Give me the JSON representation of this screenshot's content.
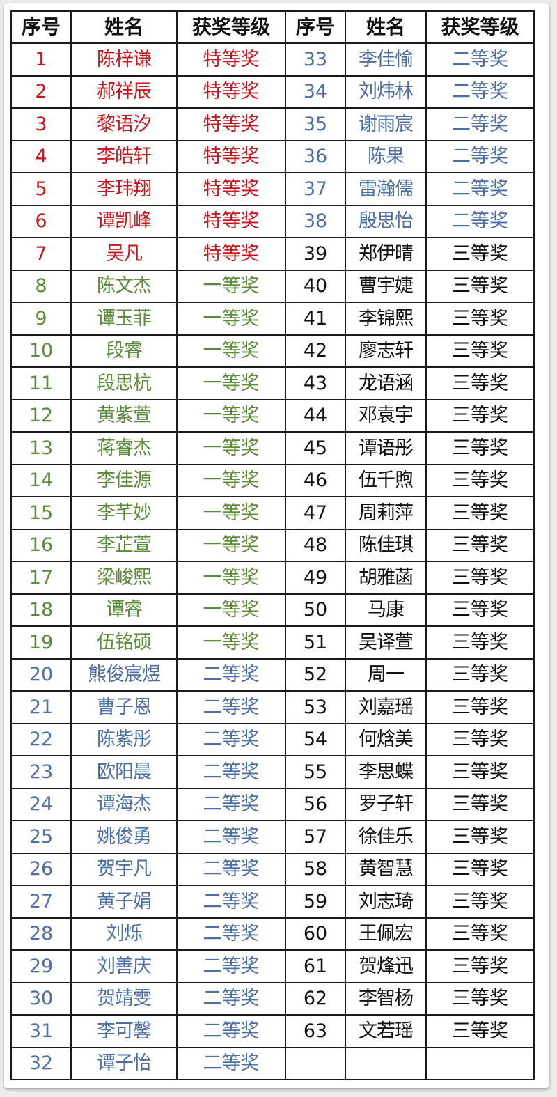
{
  "headers": [
    "序号",
    "姓名",
    "获奖等级",
    "序号",
    "姓名",
    "获奖等级"
  ],
  "colors": {
    "特等奖": "#c8161e",
    "一等奖": "#5b8c3a",
    "二等奖": "#4e6fa3",
    "三等奖": "#111111"
  },
  "left": [
    {
      "seq": "1",
      "name": "陈梓谦",
      "award": "特等奖"
    },
    {
      "seq": "2",
      "name": "郝祥辰",
      "award": "特等奖"
    },
    {
      "seq": "3",
      "name": "黎语汐",
      "award": "特等奖"
    },
    {
      "seq": "4",
      "name": "李皓轩",
      "award": "特等奖"
    },
    {
      "seq": "5",
      "name": "李玮翔",
      "award": "特等奖"
    },
    {
      "seq": "6",
      "name": "谭凯峰",
      "award": "特等奖"
    },
    {
      "seq": "7",
      "name": "吴凡",
      "award": "特等奖"
    },
    {
      "seq": "8",
      "name": "陈文杰",
      "award": "一等奖"
    },
    {
      "seq": "9",
      "name": "谭玉菲",
      "award": "一等奖"
    },
    {
      "seq": "10",
      "name": "段睿",
      "award": "一等奖"
    },
    {
      "seq": "11",
      "name": "段思杭",
      "award": "一等奖"
    },
    {
      "seq": "12",
      "name": "黄紫萱",
      "award": "一等奖"
    },
    {
      "seq": "13",
      "name": "蒋睿杰",
      "award": "一等奖"
    },
    {
      "seq": "14",
      "name": "李佳源",
      "award": "一等奖"
    },
    {
      "seq": "15",
      "name": "李芊妙",
      "award": "一等奖"
    },
    {
      "seq": "16",
      "name": "李芷萱",
      "award": "一等奖"
    },
    {
      "seq": "17",
      "name": "梁峻熙",
      "award": "一等奖"
    },
    {
      "seq": "18",
      "name": "谭睿",
      "award": "一等奖"
    },
    {
      "seq": "19",
      "name": "伍铭硕",
      "award": "一等奖"
    },
    {
      "seq": "20",
      "name": "熊俊宸煜",
      "award": "二等奖"
    },
    {
      "seq": "21",
      "name": "曹子恩",
      "award": "二等奖"
    },
    {
      "seq": "22",
      "name": "陈紫彤",
      "award": "二等奖"
    },
    {
      "seq": "23",
      "name": "欧阳晨",
      "award": "二等奖"
    },
    {
      "seq": "24",
      "name": "谭海杰",
      "award": "二等奖"
    },
    {
      "seq": "25",
      "name": "姚俊勇",
      "award": "二等奖"
    },
    {
      "seq": "26",
      "name": "贺宇凡",
      "award": "二等奖"
    },
    {
      "seq": "27",
      "name": "黄子娟",
      "award": "二等奖"
    },
    {
      "seq": "28",
      "name": "刘烁",
      "award": "二等奖"
    },
    {
      "seq": "29",
      "name": "刘善庆",
      "award": "二等奖"
    },
    {
      "seq": "30",
      "name": "贺靖雯",
      "award": "二等奖"
    },
    {
      "seq": "31",
      "name": "李可馨",
      "award": "二等奖"
    },
    {
      "seq": "32",
      "name": "谭子怡",
      "award": "二等奖"
    }
  ],
  "right": [
    {
      "seq": "33",
      "name": "李佳愉",
      "award": "二等奖"
    },
    {
      "seq": "34",
      "name": "刘炜林",
      "award": "二等奖"
    },
    {
      "seq": "35",
      "name": "谢雨宸",
      "award": "二等奖"
    },
    {
      "seq": "36",
      "name": "陈果",
      "award": "二等奖"
    },
    {
      "seq": "37",
      "name": "雷瀚儒",
      "award": "二等奖"
    },
    {
      "seq": "38",
      "name": "殷思怡",
      "award": "二等奖"
    },
    {
      "seq": "39",
      "name": "郑伊晴",
      "award": "三等奖"
    },
    {
      "seq": "40",
      "name": "曹宇婕",
      "award": "三等奖"
    },
    {
      "seq": "41",
      "name": "李锦熙",
      "award": "三等奖"
    },
    {
      "seq": "42",
      "name": "廖志轩",
      "award": "三等奖"
    },
    {
      "seq": "43",
      "name": "龙语涵",
      "award": "三等奖"
    },
    {
      "seq": "44",
      "name": "邓袁宇",
      "award": "三等奖"
    },
    {
      "seq": "45",
      "name": "谭语彤",
      "award": "三等奖"
    },
    {
      "seq": "46",
      "name": "伍千煦",
      "award": "三等奖"
    },
    {
      "seq": "47",
      "name": "周莉萍",
      "award": "三等奖"
    },
    {
      "seq": "48",
      "name": "陈佳琪",
      "award": "三等奖"
    },
    {
      "seq": "49",
      "name": "胡雅菡",
      "award": "三等奖"
    },
    {
      "seq": "50",
      "name": "马康",
      "award": "三等奖"
    },
    {
      "seq": "51",
      "name": "吴译萱",
      "award": "三等奖"
    },
    {
      "seq": "52",
      "name": "周一",
      "award": "三等奖"
    },
    {
      "seq": "53",
      "name": "刘嘉瑶",
      "award": "三等奖"
    },
    {
      "seq": "54",
      "name": "何焓美",
      "award": "三等奖"
    },
    {
      "seq": "55",
      "name": "李思蝶",
      "award": "三等奖"
    },
    {
      "seq": "56",
      "name": "罗子轩",
      "award": "三等奖"
    },
    {
      "seq": "57",
      "name": "徐佳乐",
      "award": "三等奖"
    },
    {
      "seq": "58",
      "name": "黄智慧",
      "award": "三等奖"
    },
    {
      "seq": "59",
      "name": "刘志琦",
      "award": "三等奖"
    },
    {
      "seq": "60",
      "name": "王佩宏",
      "award": "三等奖"
    },
    {
      "seq": "61",
      "name": "贺烽迅",
      "award": "三等奖"
    },
    {
      "seq": "62",
      "name": "李智杨",
      "award": "三等奖"
    },
    {
      "seq": "63",
      "name": "文若瑶",
      "award": "三等奖"
    }
  ]
}
